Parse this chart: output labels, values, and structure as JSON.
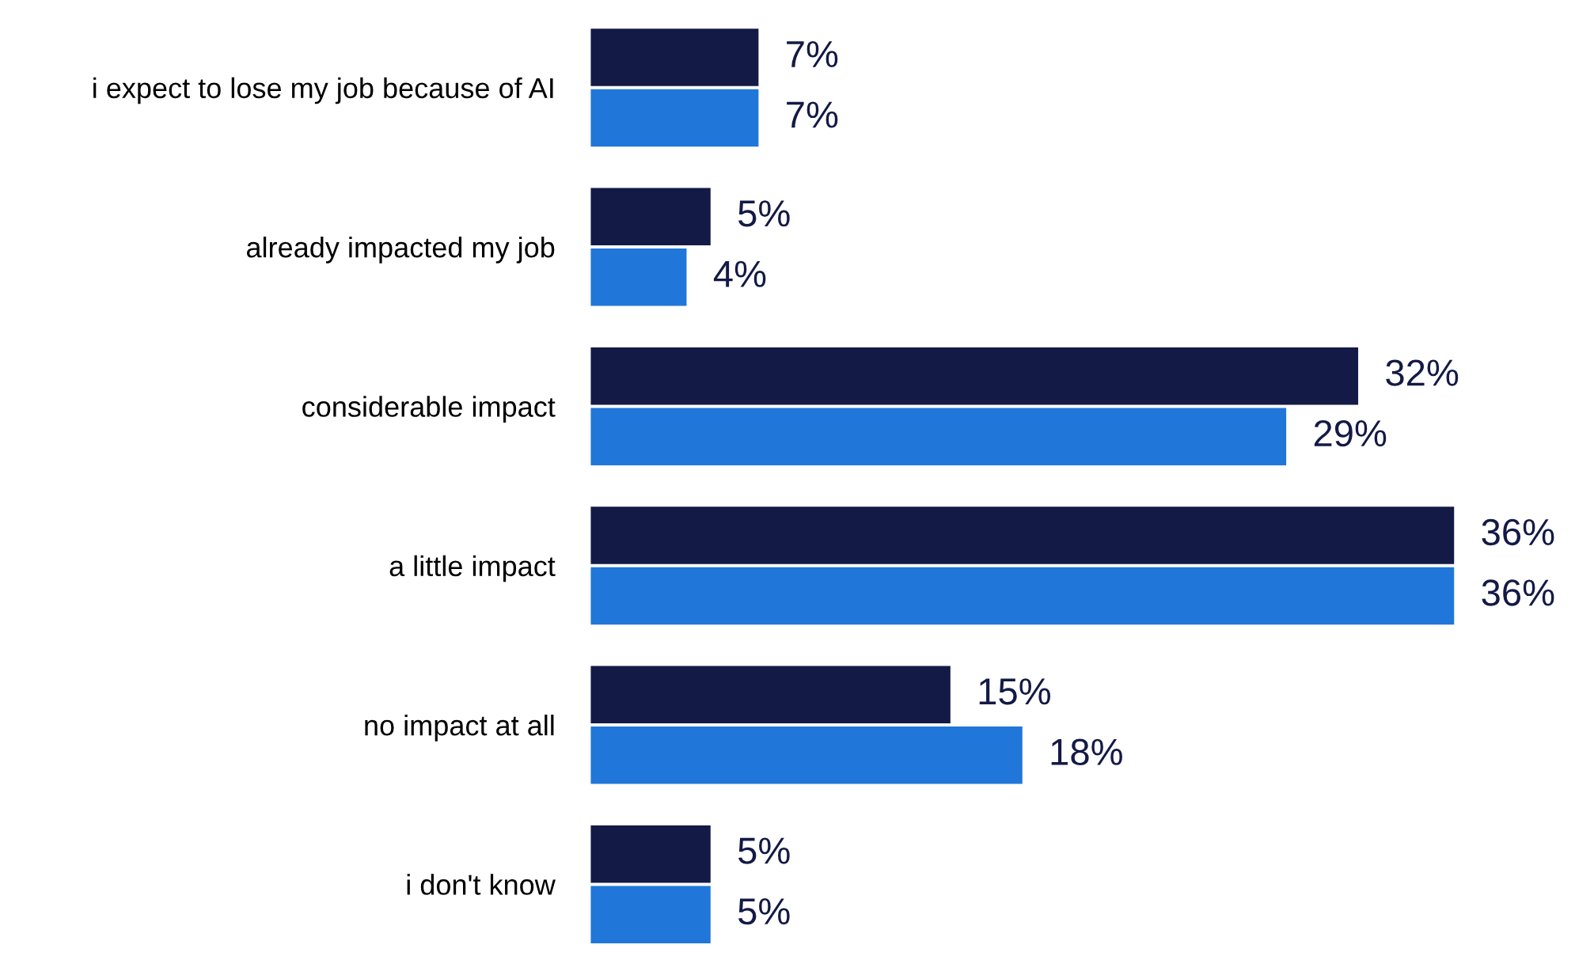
{
  "chart_data": {
    "type": "bar",
    "orientation": "horizontal",
    "categories": [
      "i expect to lose my job because of AI",
      "already impacted my job",
      "considerable impact",
      "a little impact",
      "no impact at all",
      "i don't know"
    ],
    "series": [
      {
        "color": "#141a46",
        "values": [
          7,
          5,
          32,
          36,
          15,
          5
        ],
        "value_labels": [
          "7%",
          "5%",
          "32%",
          "36%",
          "15%",
          "5%"
        ]
      },
      {
        "color": "#2176d9",
        "values": [
          7,
          4,
          29,
          36,
          18,
          5
        ],
        "value_labels": [
          "7%",
          "4%",
          "29%",
          "36%",
          "18%",
          "5%"
        ]
      }
    ],
    "grid": false,
    "legend": false
  }
}
